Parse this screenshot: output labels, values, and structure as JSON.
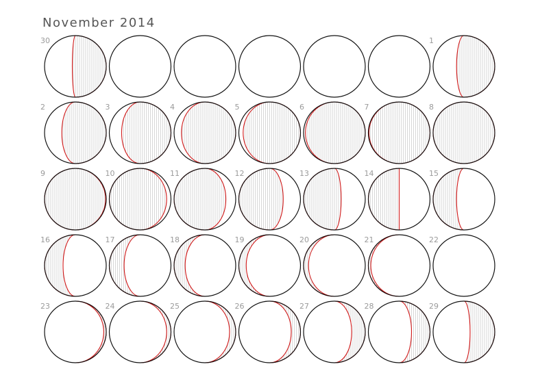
{
  "calendar": {
    "title": "November 2014",
    "colors": {
      "outline": "#111111",
      "terminator": "#d01818",
      "hatch": "#bdbdbd",
      "day_number": "#9a9a9a"
    },
    "days": [
      {
        "day": "30",
        "illumination": 0.55,
        "lit_side": "right"
      },
      {
        "day": "",
        "illumination": 0,
        "lit_side": "none"
      },
      {
        "day": "",
        "illumination": 0,
        "lit_side": "none"
      },
      {
        "day": "",
        "illumination": 0,
        "lit_side": "none"
      },
      {
        "day": "",
        "illumination": 0,
        "lit_side": "none"
      },
      {
        "day": "",
        "illumination": 0,
        "lit_side": "none"
      },
      {
        "day": "1",
        "illumination": 0.62,
        "lit_side": "right"
      },
      {
        "day": "2",
        "illumination": 0.72,
        "lit_side": "right"
      },
      {
        "day": "3",
        "illumination": 0.8,
        "lit_side": "right"
      },
      {
        "day": "4",
        "illumination": 0.88,
        "lit_side": "right"
      },
      {
        "day": "5",
        "illumination": 0.93,
        "lit_side": "right"
      },
      {
        "day": "6",
        "illumination": 0.97,
        "lit_side": "right"
      },
      {
        "day": "7",
        "illumination": 0.99,
        "lit_side": "right"
      },
      {
        "day": "8",
        "illumination": 1.0,
        "lit_side": "full"
      },
      {
        "day": "9",
        "illumination": 0.99,
        "lit_side": "left"
      },
      {
        "day": "10",
        "illumination": 0.93,
        "lit_side": "left"
      },
      {
        "day": "11",
        "illumination": 0.84,
        "lit_side": "left"
      },
      {
        "day": "12",
        "illumination": 0.72,
        "lit_side": "left"
      },
      {
        "day": "13",
        "illumination": 0.61,
        "lit_side": "left"
      },
      {
        "day": "14",
        "illumination": 0.5,
        "lit_side": "left"
      },
      {
        "day": "15",
        "illumination": 0.38,
        "lit_side": "left"
      },
      {
        "day": "16",
        "illumination": 0.3,
        "lit_side": "left"
      },
      {
        "day": "17",
        "illumination": 0.24,
        "lit_side": "left"
      },
      {
        "day": "18",
        "illumination": 0.18,
        "lit_side": "left"
      },
      {
        "day": "19",
        "illumination": 0.12,
        "lit_side": "left"
      },
      {
        "day": "20",
        "illumination": 0.08,
        "lit_side": "left"
      },
      {
        "day": "21",
        "illumination": 0.04,
        "lit_side": "left"
      },
      {
        "day": "22",
        "illumination": 0.0,
        "lit_side": "none"
      },
      {
        "day": "23",
        "illumination": 0.04,
        "lit_side": "right"
      },
      {
        "day": "24",
        "illumination": 0.07,
        "lit_side": "right"
      },
      {
        "day": "25",
        "illumination": 0.1,
        "lit_side": "right"
      },
      {
        "day": "26",
        "illumination": 0.15,
        "lit_side": "right"
      },
      {
        "day": "27",
        "illumination": 0.22,
        "lit_side": "right"
      },
      {
        "day": "28",
        "illumination": 0.3,
        "lit_side": "right"
      },
      {
        "day": "29",
        "illumination": 0.4,
        "lit_side": "right"
      }
    ]
  }
}
